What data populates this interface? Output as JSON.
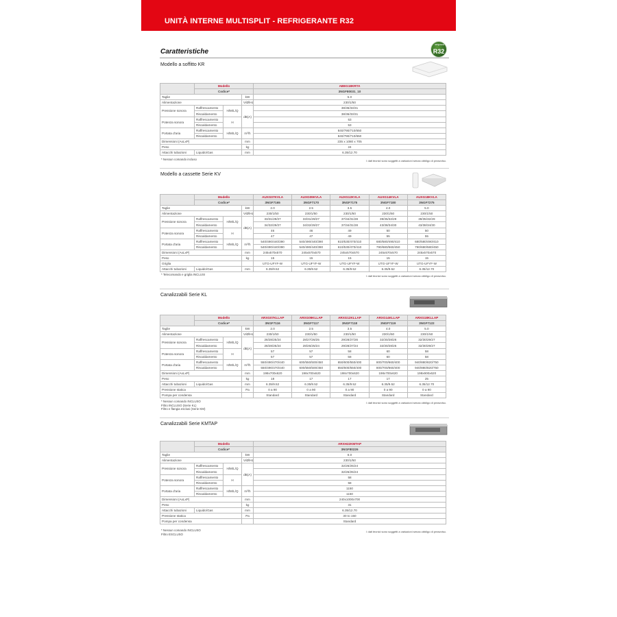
{
  "header": {
    "title": "UNITÀ INTERNE MULTISPLIT - REFRIGERANTE R32"
  },
  "section_title": "Caratteristiche",
  "badge": {
    "small": "refrigerante",
    "text": "R32",
    "color": "#2e6b24"
  },
  "accent": "#e30613",
  "labels": {
    "modello": "Modello",
    "codice": "Codice*",
    "taglie": "Taglie",
    "alimentazione": "Alimentazione",
    "pressione": "Pressione sonora",
    "potenza": "Potenza sonora",
    "portata": "Portata d'aria",
    "dimensioni": "Dimensioni (AxLxP)",
    "peso": "Peso",
    "griglia": "Griglia",
    "attacchi": "Attacchi tubazioni",
    "liquido": "Liquido/Gas",
    "pressione_statica": "Pressione statica",
    "pompa": "Pompa per condensa",
    "raff": "Raffrescamento",
    "risc": "Riscaldamento",
    "hmlq": "H/M/L/Q",
    "h": "H"
  },
  "units": {
    "kw": "kW",
    "v": "V/Ø/Hz",
    "db": "dB(A)",
    "m3": "m³/h",
    "mm": "mm",
    "kg": "kg",
    "pa": "Pa"
  },
  "disclaimer": "I dati tecnici sono soggetti a variazioni senza obbligo di preavviso.",
  "tables": [
    {
      "title": "Modello a soffitto KR",
      "models": [
        "ABEG18KRTA"
      ],
      "codes": [
        "3NGF80031_10"
      ],
      "taglie": [
        "5.0"
      ],
      "alimentazione": [
        "230/1/50"
      ],
      "pressione_raff": [
        "38/36/33/31"
      ],
      "pressione_risc": [
        "38/36/33/31"
      ],
      "potenza_raff": [
        "53"
      ],
      "potenza_risc": [
        "53"
      ],
      "portata_raff": [
        "840/790/710/650"
      ],
      "portata_risc": [
        "840/790/710/650"
      ],
      "dimensioni": [
        "235 x 1080 x 705"
      ],
      "peso": [
        "24"
      ],
      "attacchi": [
        "6.35/12.70"
      ],
      "footnotes": [
        "* Nessun comando incluso"
      ]
    },
    {
      "title": "Modello a cassette Serie KV",
      "models": [
        "AUXG07KVLA",
        "AUXG09KVLA",
        "AUXG12KVLA",
        "AUXG14KVLA",
        "AUXG18KVLA"
      ],
      "codes": [
        "3NGF7165",
        "3NGF7170",
        "3NGF7175",
        "3NGF7180",
        "3NGF7275"
      ],
      "taglie": [
        "2.0",
        "2.5",
        "3.5",
        "4.0",
        "5.0"
      ],
      "alimentazione": [
        "230/1/50",
        "230/1/50",
        "230/1/50",
        "230/1/50",
        "230/1/50"
      ],
      "pressione_raff": [
        "33/31/29/27",
        "33/31/29/27",
        "37/34/31/28",
        "39/35/32/29",
        "39/35/32/29"
      ],
      "pressione_risc": [
        "34/32/29/27",
        "34/32/29/27",
        "37/34/31/28",
        "43/38/34/30",
        "43/38/34/30"
      ],
      "potenza_raff": [
        "46",
        "46",
        "49",
        "50",
        "50"
      ],
      "potenza_risc": [
        "47",
        "47",
        "49",
        "55",
        "55"
      ],
      "portata_raff": [
        "540/490/440/390",
        "540/490/440/390",
        "610/530/470/410",
        "680/580/490/410",
        "680/580/490/410"
      ],
      "portata_risc": [
        "540/490/440/390",
        "540/490/440/390",
        "610/530/470/410",
        "790/680/560/450",
        "790/680/580/450"
      ],
      "dimensioni": [
        "245x570x570",
        "245x570x570",
        "245x570x570",
        "245x570x570",
        "245x570x570"
      ],
      "peso": [
        "15",
        "15",
        "15",
        "15",
        "15"
      ],
      "griglia": [
        "UTG-UFYF-W",
        "UTG-UFYF-W",
        "UTG-UFYF-W",
        "UTG-UFYF-W",
        "UTG-UFYF-W"
      ],
      "attacchi": [
        "6.35/9.52",
        "6.35/9.52",
        "6.35/9.52",
        "6.35/9.52",
        "6.35/12.70"
      ],
      "footnotes": [
        "* Telecomando e griglia INCLUSI"
      ]
    },
    {
      "title": "Canalizzabili Serie KL",
      "models": [
        "ARXG07KLLAP",
        "ARXG09KLLAP",
        "ARXG12KLLAP",
        "ARXG14KLLAP",
        "ARXG18KLLAP"
      ],
      "codes": [
        "3NGF7116",
        "3NGF7117",
        "3NGF7118",
        "3NGF7119",
        "3NGF7122"
      ],
      "taglie": [
        "2.0",
        "2.5",
        "3.5",
        "4.0",
        "5.0"
      ],
      "alimentazione": [
        "230/1/50",
        "230/1/50",
        "230/1/50",
        "230/1/50",
        "230/1/50"
      ],
      "pressione_raff": [
        "28/28/25/24",
        "28/27/26/25",
        "29/28/27/26",
        "32/30/28/26",
        "32/30/29/27"
      ],
      "pressione_risc": [
        "28/28/25/24",
        "28/26/25/24",
        "29/28/27/24",
        "32/30/28/25",
        "32/30/29/27"
      ],
      "potenza_raff": [
        "57",
        "57",
        "58",
        "60",
        "58"
      ],
      "potenza_risc": [
        "57",
        "57",
        "58",
        "60",
        "58"
      ],
      "portata_raff": [
        "550/490/470/440",
        "600/550/500/450",
        "650/600/550/400",
        "800/700/660/400",
        "940/880/820/750"
      ],
      "portata_risc": [
        "550/490/470/440",
        "600/550/500/450",
        "650/600/550/400",
        "800/700/660/400",
        "940/880/820/750"
      ],
      "dimensioni": [
        "198x700x620",
        "198x700x620",
        "198x700x620",
        "198x700x620",
        "198x900x620"
      ],
      "peso": [
        "18",
        "17",
        "17",
        "17",
        "25"
      ],
      "attacchi": [
        "6.35/9.52",
        "6.35/9.52",
        "6.35/9.52",
        "6.35/9.52",
        "6.35/12.70"
      ],
      "pressione_statica": [
        "0 a 90",
        "0 a 90",
        "0 a 90",
        "0 a 90",
        "0 a 90"
      ],
      "pompa": [
        "Standard",
        "Standard",
        "Standard",
        "Standard",
        "Standard"
      ],
      "footnotes": [
        "* Nessun comando INCLUSO",
        "Filtro INCLUSO (Serie KL)",
        "Filtro e flangia esclusi (Serie KM)"
      ]
    },
    {
      "title": "Canalizzabili Serie KMTAP",
      "models": [
        "ARXH22KMTAP"
      ],
      "codes": [
        "3NGF80226"
      ],
      "taglie": [
        "6.0"
      ],
      "alimentazione": [
        "230/1/50"
      ],
      "pressione_raff": [
        "32/26/25/24"
      ],
      "pressione_risc": [
        "32/26/25/24"
      ],
      "potenza_raff": [
        "58"
      ],
      "potenza_risc": [
        "58"
      ],
      "portata_raff": [
        "1150"
      ],
      "portata_risc": [
        "1150"
      ],
      "dimensioni": [
        "240x1000x700"
      ],
      "peso": [
        "31"
      ],
      "attacchi": [
        "6.35/12.70"
      ],
      "pressione_statica": [
        "30 to 150"
      ],
      "pompa": [
        "Standard"
      ],
      "footnotes": [
        "* Nessun comando INCLUSO",
        "Filtro ESCLUSO"
      ]
    }
  ]
}
